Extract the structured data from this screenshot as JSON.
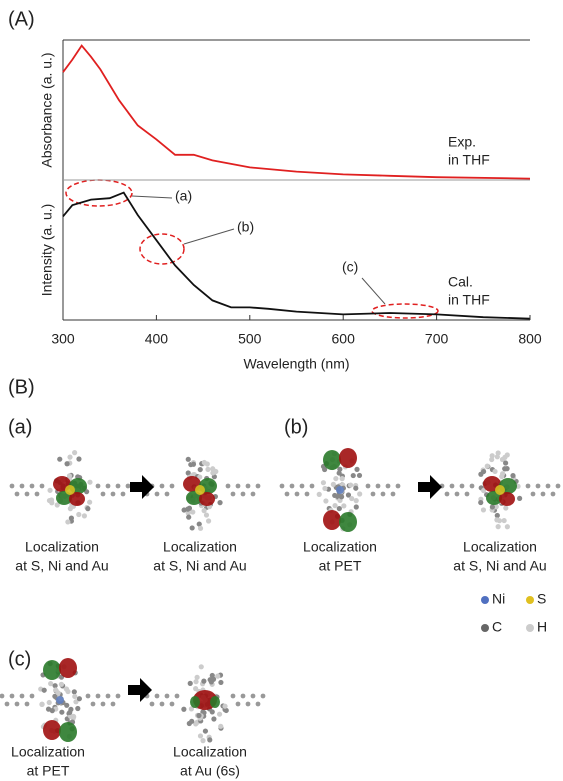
{
  "chart_data": [
    {
      "type": "line",
      "panel_label": "(A)",
      "ylabel": "Absorbance (a. u.)",
      "annotation": [
        "Exp.",
        "in THF"
      ],
      "x": [
        300,
        310,
        320,
        330,
        340,
        360,
        380,
        400,
        420,
        440,
        460,
        500,
        550,
        600,
        650,
        700,
        800
      ],
      "values": [
        0.77,
        0.86,
        0.96,
        0.88,
        0.79,
        0.57,
        0.39,
        0.29,
        0.18,
        0.18,
        0.14,
        0.09,
        0.06,
        0.04,
        0.03,
        0.02,
        0.01
      ],
      "color": "#e02020",
      "xlim": [
        300,
        800
      ],
      "ylim": [
        0,
        1
      ]
    },
    {
      "type": "line",
      "ylabel": "Intensity (a. u.)",
      "xlabel": "Wavelength (nm)",
      "annotations": [
        "(a)",
        "(b)",
        "(c)"
      ],
      "annotation": [
        "Cal.",
        "in THF"
      ],
      "x": [
        300,
        310,
        330,
        350,
        365,
        380,
        400,
        420,
        440,
        460,
        480,
        500,
        520,
        550,
        600,
        650,
        700,
        750,
        800
      ],
      "values": [
        0.74,
        0.82,
        0.86,
        0.87,
        0.91,
        0.75,
        0.57,
        0.39,
        0.25,
        0.14,
        0.09,
        0.09,
        0.08,
        0.06,
        0.04,
        0.05,
        0.04,
        0.02,
        0.01
      ],
      "color": "#111111",
      "xlim": [
        300,
        800
      ],
      "ylim": [
        0,
        1
      ],
      "xticks": [
        300,
        400,
        500,
        600,
        700,
        800
      ]
    }
  ],
  "panel_b": {
    "label": "(B)",
    "groups": [
      {
        "label": "(a)",
        "captions": [
          [
            "Localization",
            "at S, Ni and Au"
          ],
          [
            "Localization",
            "at S, Ni and Au"
          ]
        ]
      },
      {
        "label": "(b)",
        "captions": [
          [
            "Localization",
            "at PET"
          ],
          [
            "Localization",
            "at S, Ni and Au"
          ]
        ]
      },
      {
        "label": "(c)",
        "captions": [
          [
            "Localization",
            "at PET"
          ],
          [
            "Localization",
            "at Au (6s)"
          ]
        ]
      }
    ],
    "legend": [
      "Ni",
      "S",
      "C",
      "H"
    ]
  }
}
